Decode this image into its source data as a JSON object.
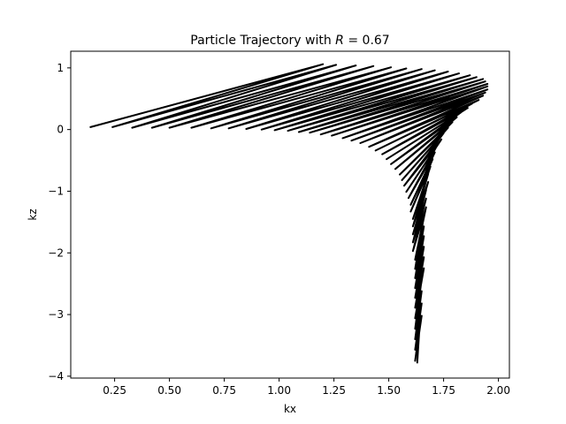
{
  "chart_data": {
    "type": "line",
    "title_prefix": "Particle Trajectory with ",
    "title_var": "R",
    "title_suffix": " = 0.67",
    "xlabel": "kx",
    "ylabel": "kz",
    "xlim": [
      0.05,
      2.05
    ],
    "ylim": [
      -4.03,
      1.27
    ],
    "x_ticks": [
      0.25,
      0.5,
      0.75,
      1.0,
      1.25,
      1.5,
      1.75,
      2.0
    ],
    "x_tick_labels": [
      "0.25",
      "0.50",
      "0.75",
      "1.00",
      "1.25",
      "1.50",
      "1.75",
      "2.00"
    ],
    "y_ticks": [
      1,
      0,
      -1,
      -2,
      -3,
      -4
    ],
    "y_tick_labels": [
      "1",
      "0",
      "−1",
      "−2",
      "−3",
      "−4"
    ],
    "grid": false,
    "line_color": "#000000",
    "line_width": 2,
    "series": [
      {
        "values": [
          [
            0.14,
            0.04
          ],
          [
            1.2,
            1.06
          ],
          [
            0.24,
            0.04
          ],
          [
            1.26,
            1.05
          ],
          [
            0.33,
            0.03
          ],
          [
            1.35,
            1.04
          ],
          [
            0.42,
            0.03
          ],
          [
            1.43,
            1.03
          ],
          [
            0.5,
            0.03
          ],
          [
            1.51,
            1.01
          ],
          [
            0.6,
            0.03
          ],
          [
            1.58,
            0.99
          ],
          [
            0.69,
            0.02
          ],
          [
            1.65,
            0.98
          ],
          [
            0.77,
            0.02
          ],
          [
            1.71,
            0.96
          ],
          [
            0.85,
            0.01
          ],
          [
            1.77,
            0.94
          ],
          [
            0.92,
            0.0
          ],
          [
            1.82,
            0.91
          ],
          [
            0.98,
            -0.01
          ],
          [
            1.87,
            0.88
          ],
          [
            1.04,
            -0.02
          ],
          [
            1.9,
            0.85
          ],
          [
            1.09,
            -0.04
          ],
          [
            1.93,
            0.82
          ],
          [
            1.14,
            -0.05
          ],
          [
            1.94,
            0.78
          ],
          [
            1.19,
            -0.08
          ],
          [
            1.95,
            0.74
          ],
          [
            1.24,
            -0.1
          ],
          [
            1.95,
            0.7
          ],
          [
            1.29,
            -0.14
          ],
          [
            1.95,
            0.65
          ],
          [
            1.33,
            -0.18
          ],
          [
            1.94,
            0.6
          ],
          [
            1.37,
            -0.22
          ],
          [
            1.93,
            0.55
          ],
          [
            1.41,
            -0.28
          ],
          [
            1.91,
            0.48
          ],
          [
            1.44,
            -0.34
          ],
          [
            1.88,
            0.42
          ],
          [
            1.47,
            -0.4
          ],
          [
            1.86,
            0.35
          ],
          [
            1.49,
            -0.48
          ],
          [
            1.83,
            0.28
          ],
          [
            1.51,
            -0.56
          ],
          [
            1.81,
            0.2
          ],
          [
            1.53,
            -0.64
          ],
          [
            1.79,
            0.12
          ],
          [
            1.55,
            -0.73
          ],
          [
            1.77,
            0.03
          ],
          [
            1.56,
            -0.82
          ],
          [
            1.75,
            -0.06
          ],
          [
            1.57,
            -0.91
          ],
          [
            1.74,
            -0.16
          ],
          [
            1.58,
            -1.01
          ],
          [
            1.72,
            -0.26
          ],
          [
            1.59,
            -1.11
          ],
          [
            1.71,
            -0.37
          ],
          [
            1.6,
            -1.22
          ],
          [
            1.7,
            -0.48
          ],
          [
            1.6,
            -1.33
          ],
          [
            1.69,
            -0.6
          ],
          [
            1.61,
            -1.45
          ],
          [
            1.68,
            -0.72
          ],
          [
            1.61,
            -1.57
          ],
          [
            1.68,
            -0.85
          ],
          [
            1.61,
            -1.7
          ],
          [
            1.67,
            -0.98
          ],
          [
            1.61,
            -1.83
          ],
          [
            1.67,
            -1.12
          ],
          [
            1.61,
            -1.97
          ],
          [
            1.67,
            -1.26
          ],
          [
            1.62,
            -2.11
          ],
          [
            1.66,
            -1.41
          ],
          [
            1.62,
            -2.26
          ],
          [
            1.66,
            -1.57
          ],
          [
            1.62,
            -2.41
          ],
          [
            1.66,
            -1.73
          ],
          [
            1.62,
            -2.57
          ],
          [
            1.66,
            -1.9
          ],
          [
            1.62,
            -2.73
          ],
          [
            1.66,
            -2.07
          ],
          [
            1.62,
            -2.89
          ],
          [
            1.66,
            -2.25
          ],
          [
            1.62,
            -3.06
          ],
          [
            1.65,
            -2.43
          ],
          [
            1.62,
            -3.23
          ],
          [
            1.65,
            -2.62
          ],
          [
            1.62,
            -3.4
          ],
          [
            1.65,
            -2.82
          ],
          [
            1.62,
            -3.57
          ],
          [
            1.65,
            -3.02
          ],
          [
            1.62,
            -3.75
          ],
          [
            1.64,
            -3.22
          ],
          [
            1.63,
            -3.78
          ]
        ]
      }
    ]
  }
}
